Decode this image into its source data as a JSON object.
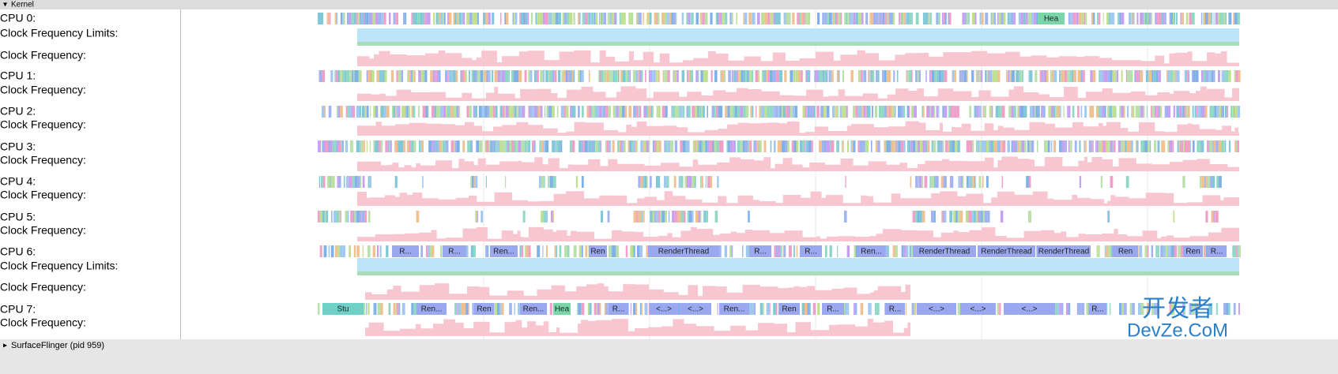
{
  "header": {
    "section": "Kernel"
  },
  "rows": [
    "CPU 0:",
    "Clock Frequency Limits:",
    "Clock Frequency:",
    "CPU 1:",
    "Clock Frequency:",
    "CPU 2:",
    "Clock Frequency:",
    "CPU 3:",
    "Clock Frequency:",
    "CPU 4:",
    "Clock Frequency:",
    "CPU 5:",
    "Clock Frequency:",
    "CPU 6:",
    "Clock Frequency Limits:",
    "Clock Frequency:",
    "CPU 7:",
    "Clock Frequency:"
  ],
  "slices": {
    "cpu0": [
      "Hea"
    ],
    "cpu6": [
      "R...",
      "R...",
      "Ren...",
      "Ren",
      "RenderThread",
      "R...",
      "R...",
      "Ren...",
      "RenderThread",
      "RenderThread",
      "RenderThread",
      "Ren",
      "Ren",
      "R..."
    ],
    "cpu7": [
      "Stu",
      "Ren...",
      "Ren",
      "Ren...",
      "Hea",
      "R...",
      "<...>",
      "<...>",
      "Ren...",
      "Ren",
      "R...",
      "R...",
      "<...>",
      "<...>",
      "<...>",
      "R..."
    ]
  },
  "footer": "SurfaceFlinger (pid 959)",
  "watermark": {
    "cn": "开发者",
    "en": "DevZe.CoM"
  }
}
